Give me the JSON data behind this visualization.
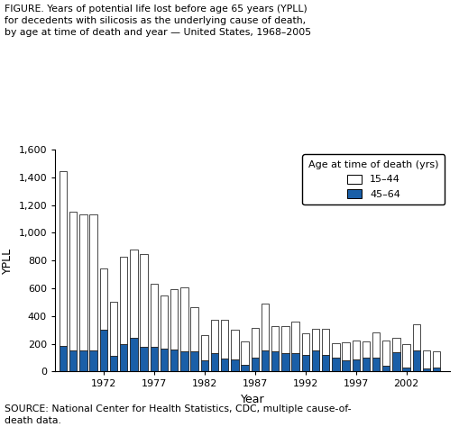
{
  "years": [
    1968,
    1969,
    1970,
    1971,
    1972,
    1973,
    1974,
    1975,
    1976,
    1977,
    1978,
    1979,
    1980,
    1981,
    1982,
    1983,
    1984,
    1985,
    1986,
    1987,
    1988,
    1989,
    1990,
    1991,
    1992,
    1993,
    1994,
    1995,
    1996,
    1997,
    1998,
    1999,
    2000,
    2001,
    2002,
    2003,
    2004,
    2005
  ],
  "ypll_1544": [
    1260,
    1000,
    980,
    980,
    440,
    390,
    630,
    640,
    670,
    460,
    380,
    430,
    460,
    320,
    185,
    235,
    280,
    210,
    165,
    215,
    335,
    180,
    200,
    230,
    155,
    155,
    185,
    105,
    130,
    130,
    115,
    180,
    185,
    100,
    170,
    185,
    125,
    115
  ],
  "ypll_4564": [
    185,
    150,
    150,
    155,
    300,
    115,
    200,
    240,
    175,
    175,
    165,
    160,
    145,
    145,
    80,
    135,
    95,
    90,
    50,
    100,
    155,
    145,
    130,
    130,
    120,
    155,
    120,
    100,
    80,
    90,
    100,
    100,
    40,
    140,
    30,
    155,
    25,
    30
  ],
  "title_line1": "FIGURE. Years of potential life lost before age 65 years (YPLL)",
  "title_line2": "for decedents with silicosis as the underlying cause of death,",
  "title_line3": "by age at time of death and year — United States, 1968–2005",
  "ylabel": "YPLL",
  "xlabel": "Year",
  "ylim": [
    0,
    1600
  ],
  "yticks": [
    0,
    200,
    400,
    600,
    800,
    1000,
    1200,
    1400,
    1600
  ],
  "xticks": [
    1972,
    1977,
    1982,
    1987,
    1992,
    1997,
    2002
  ],
  "color_1544": "#ffffff",
  "color_4564": "#1a5fa8",
  "edgecolor": "#000000",
  "legend_title": "Age at time of death (yrs)",
  "legend_label_1544": "15–44",
  "legend_label_4564": "45–64",
  "source_line1": "SOURCE: National Center for Health Statistics, CDC, multiple cause-of-",
  "source_line2": "death data.",
  "bar_width": 0.75
}
